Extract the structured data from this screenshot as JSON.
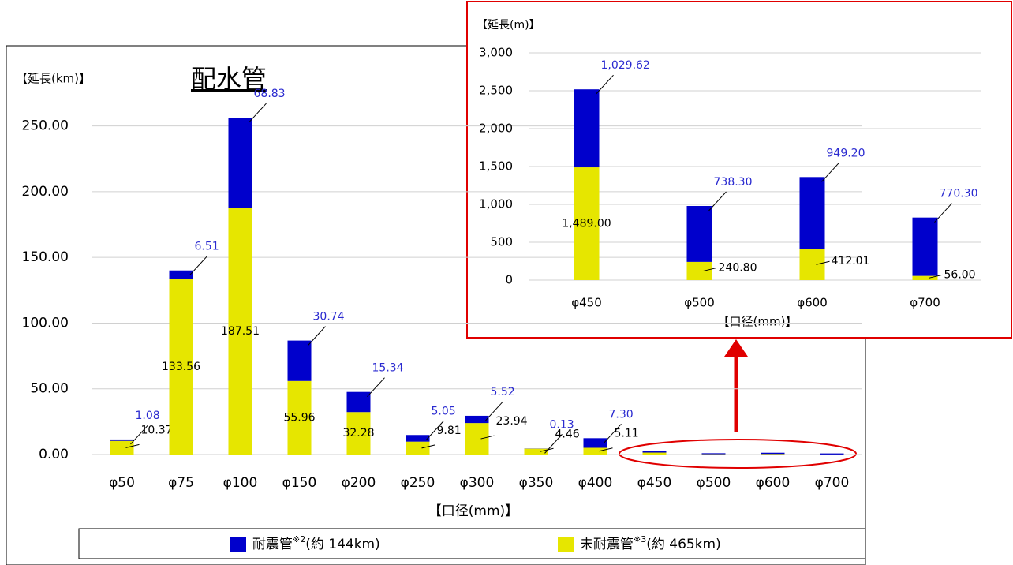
{
  "chart_data": [
    {
      "type": "stacked-bar",
      "title": "配水管",
      "y_label": "【延長(km)】",
      "x_label": "【口径(mm)】",
      "categories": [
        "φ50",
        "φ75",
        "φ100",
        "φ150",
        "φ200",
        "φ250",
        "φ300",
        "φ350",
        "φ400",
        "φ450",
        "φ500",
        "φ600",
        "φ700"
      ],
      "series": [
        {
          "name": "未耐震管",
          "note": "※3",
          "total": "(約 465km)",
          "color": "#e6e600",
          "values": [
            10.37,
            133.56,
            187.51,
            55.96,
            32.28,
            9.81,
            23.94,
            4.46,
            5.11,
            1.49,
            0.24,
            0.41,
            0.06
          ],
          "value_labels": [
            "10.37",
            "133.56",
            "187.51",
            "55.96",
            "32.28",
            "9.81",
            "23.94",
            "4.46",
            "5.11",
            null,
            null,
            null,
            null
          ]
        },
        {
          "name": "耐震管",
          "note": "※2",
          "total": "(約 144km)",
          "color": "#0000cc",
          "values": [
            1.08,
            6.51,
            68.83,
            30.74,
            15.34,
            5.05,
            5.52,
            0.13,
            7.3,
            1.03,
            0.74,
            0.95,
            0.77
          ],
          "value_labels": [
            "1.08",
            "6.51",
            "68.83",
            "30.74",
            "15.34",
            "5.05",
            "5.52",
            "0.13",
            "7.30",
            null,
            null,
            null,
            null
          ]
        }
      ],
      "ylim": [
        0,
        275
      ],
      "yticks": [
        {
          "value": 0,
          "label": "0.00"
        },
        {
          "value": 50,
          "label": "50.00"
        },
        {
          "value": 100,
          "label": "100.00"
        },
        {
          "value": 150,
          "label": "150.00"
        },
        {
          "value": 200,
          "label": "200.00"
        },
        {
          "value": 250,
          "label": "250.00"
        }
      ],
      "grid": true
    },
    {
      "type": "stacked-bar",
      "y_label": "【延長(m)】",
      "x_label": "【口径(mm)】",
      "categories": [
        "φ450",
        "φ500",
        "φ600",
        "φ700"
      ],
      "series": [
        {
          "name": "未耐震管",
          "color": "#e6e600",
          "values": [
            1489.0,
            240.8,
            412.01,
            56.0
          ],
          "value_labels": [
            "1,489.00",
            "240.80",
            "412.01",
            "56.00"
          ]
        },
        {
          "name": "耐震管",
          "color": "#0000cc",
          "values": [
            1029.62,
            738.3,
            949.2,
            770.3
          ],
          "value_labels": [
            "1,029.62",
            "738.30",
            "949.20",
            "770.30"
          ]
        }
      ],
      "ylim": [
        0,
        3000
      ],
      "yticks": [
        0,
        {
          "value": 500,
          "label": "500"
        },
        {
          "value": 1000,
          "label": "1,000"
        },
        {
          "value": 1500,
          "label": "1,500"
        },
        {
          "value": 2000,
          "label": "2,000"
        },
        {
          "value": 2500,
          "label": "2,500"
        },
        {
          "value": 3000,
          "label": "3,000"
        }
      ],
      "grid": true
    }
  ]
}
